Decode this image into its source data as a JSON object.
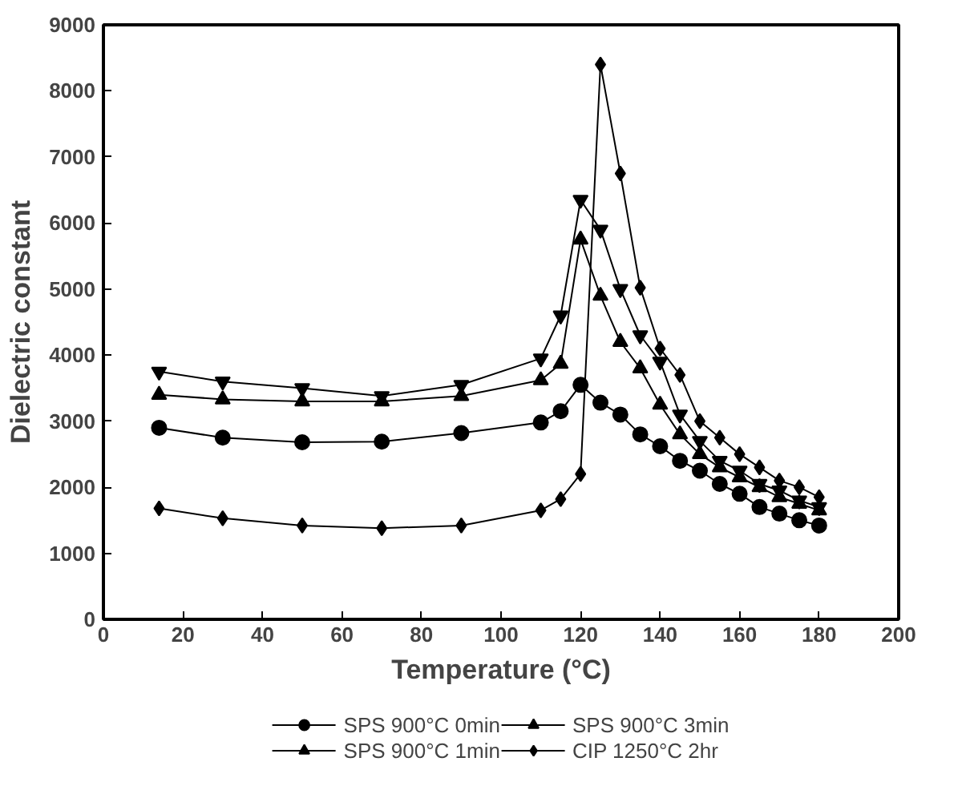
{
  "chart_data": {
    "type": "line",
    "xlabel": "Temperature (°C)",
    "ylabel": "Dielectric constant",
    "x": [
      14,
      30,
      50,
      70,
      90,
      110,
      115,
      120,
      125,
      130,
      135,
      140,
      145,
      150,
      155,
      160,
      165,
      170,
      175,
      180
    ],
    "xlim": [
      0,
      200
    ],
    "ylim": [
      0,
      9000
    ],
    "xticks": [
      0,
      20,
      40,
      60,
      80,
      100,
      120,
      140,
      160,
      180,
      200
    ],
    "yticks": [
      0,
      1000,
      2000,
      3000,
      4000,
      5000,
      6000,
      7000,
      8000,
      9000
    ],
    "grid": false,
    "legend": "bottom",
    "series": [
      {
        "name": "SPS 900°C 0min",
        "color": "#000000",
        "marker": "circle",
        "values": [
          2900,
          2750,
          2680,
          2690,
          2820,
          2980,
          3150,
          3550,
          3280,
          3100,
          2800,
          2620,
          2400,
          2250,
          2050,
          1900,
          1700,
          1600,
          1500,
          1420
        ]
      },
      {
        "name": "SPS 900°C 1min",
        "color": "#000000",
        "marker": "triangle",
        "values": [
          3400,
          3330,
          3300,
          3300,
          3380,
          3620,
          3870,
          5750,
          4900,
          4200,
          3800,
          3250,
          2800,
          2500,
          2300,
          2150,
          2000,
          1850,
          1750,
          1650
        ]
      },
      {
        "name": "SPS 900°C 3min",
        "color": "#000000",
        "marker": "triangle",
        "values": [
          3750,
          3600,
          3500,
          3380,
          3550,
          3950,
          4600,
          6350,
          5900,
          5000,
          4300,
          3900,
          3100,
          2700,
          2400,
          2250,
          2050,
          1950,
          1800,
          1700
        ]
      },
      {
        "name": "CIP 1250°C 2hr",
        "color": "#000000",
        "marker": "diamond",
        "values": [
          1680,
          1530,
          1420,
          1380,
          1420,
          1650,
          1820,
          2200,
          8400,
          6750,
          5020,
          4100,
          3700,
          3000,
          2750,
          2500,
          2300,
          2100,
          2000,
          1850
        ]
      }
    ]
  }
}
